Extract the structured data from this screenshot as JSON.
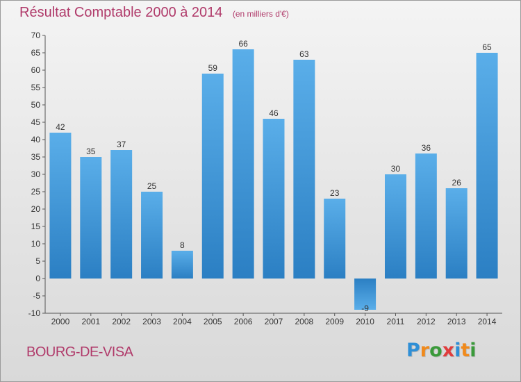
{
  "chart_data": {
    "type": "bar",
    "title": "Résultat Comptable 2000 à 2014",
    "subtitle": "(en milliers d'€)",
    "categories": [
      "2000",
      "2001",
      "2002",
      "2003",
      "2004",
      "2005",
      "2006",
      "2007",
      "2008",
      "2009",
      "2010",
      "2011",
      "2012",
      "2013",
      "2014"
    ],
    "values": [
      42,
      35,
      37,
      25,
      8,
      59,
      66,
      46,
      63,
      23,
      -9,
      30,
      36,
      26,
      65
    ],
    "value_labels": [
      "42",
      "35",
      "37",
      "25",
      "8",
      "59",
      "66",
      "46",
      "63",
      "23",
      "-9",
      "30",
      "36",
      "26",
      "65"
    ],
    "ylim": [
      -10,
      70
    ],
    "yticks": [
      -10,
      -5,
      0,
      5,
      10,
      15,
      20,
      25,
      30,
      35,
      40,
      45,
      50,
      55,
      60,
      65,
      70
    ],
    "grid": false,
    "xlabel": "",
    "ylabel": "",
    "bar_color": "#3d95d9"
  },
  "footer": {
    "commune": "BOURG-DE-VISA",
    "brand": [
      "P",
      "r",
      "o",
      "x",
      "i",
      "t",
      "i"
    ],
    "brand_colors": [
      "#2f8fd6",
      "#f08a1c",
      "#3a9a3a",
      "#e03c3c",
      "#2f8fd6",
      "#f08a1c",
      "#3a9a3a"
    ]
  }
}
